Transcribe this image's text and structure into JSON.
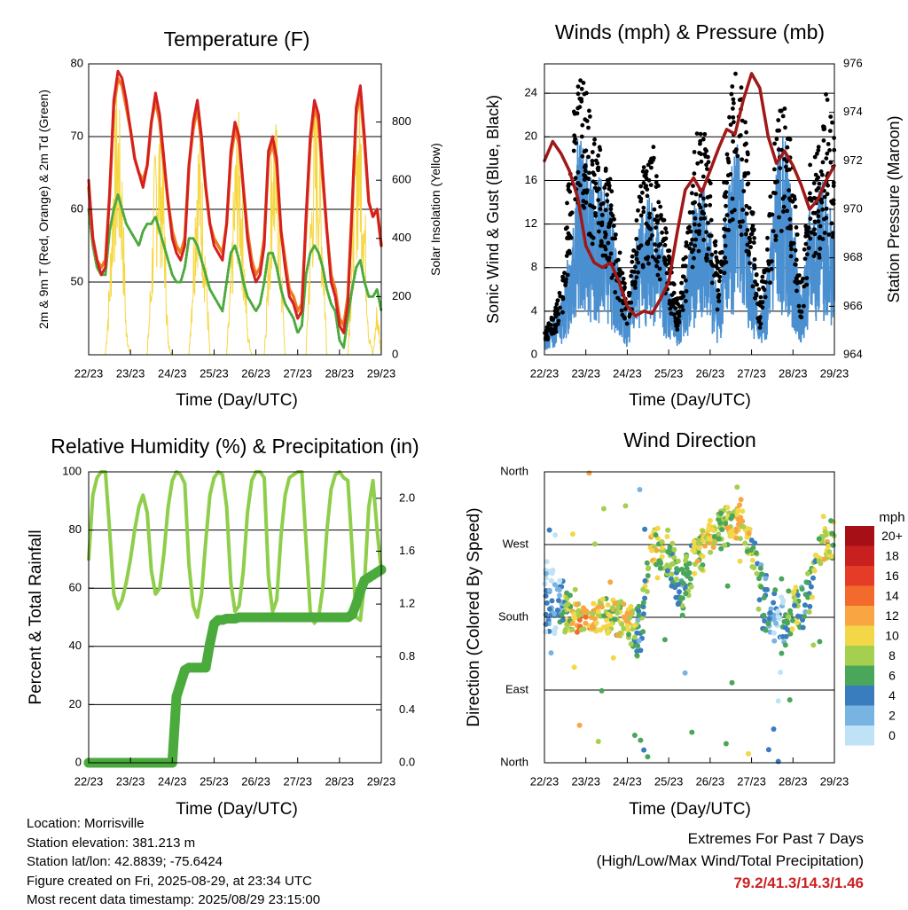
{
  "time_ticks": [
    "22/23",
    "23/23",
    "24/23",
    "25/23",
    "26/23",
    "27/23",
    "28/23",
    "29/23"
  ],
  "time_label": "Time (Day/UTC)",
  "panels": {
    "temperature": {
      "title": "Temperature (F)",
      "ylabel": "2m & 9m T (Red, Orange) & 2m Td (Green)",
      "ylabel_right": "Solar Insolation (Yellow)",
      "yticks": [
        "50",
        "60",
        "70",
        "80"
      ],
      "yticks_right": [
        "0",
        "200",
        "400",
        "600",
        "800"
      ]
    },
    "winds": {
      "title": "Winds (mph) & Pressure (mb)",
      "ylabel": "Sonic Wind & Gust (Blue, Black)",
      "ylabel_right": "Station Pressure (Maroon)",
      "yticks": [
        "0",
        "4",
        "8",
        "12",
        "16",
        "20",
        "24"
      ],
      "yticks_right": [
        "964",
        "966",
        "968",
        "970",
        "972",
        "974",
        "976"
      ]
    },
    "humidity": {
      "title": "Relative Humidity (%) & Precipitation (in)",
      "ylabel": "Percent & Total Rainfall",
      "yticks": [
        "0",
        "20",
        "40",
        "60",
        "80",
        "100"
      ],
      "yticks_right": [
        "0.0",
        "0.4",
        "0.8",
        "1.2",
        "1.6",
        "2.0"
      ]
    },
    "direction": {
      "title": "Wind Direction",
      "ylabel": "Direction (Colored By Speed)",
      "yticks": [
        "North",
        "East",
        "South",
        "West",
        "North"
      ],
      "colorbar_title": "mph",
      "colorbar_labels": [
        "20+",
        "18",
        "16",
        "14",
        "12",
        "10",
        "8",
        "6",
        "4",
        "2",
        "0"
      ],
      "colorbar_colors": [
        "#a50f15",
        "#c8201e",
        "#e43c27",
        "#f26b2c",
        "#f9a642",
        "#f2d849",
        "#a5cf4f",
        "#4aa65a",
        "#3a7dbf",
        "#78b4e2",
        "#bfe2f6"
      ]
    }
  },
  "info": {
    "location": "Location: Morrisville",
    "elevation": "Station elevation: 381.213 m",
    "latlon": "Station lat/lon: 42.8839; -75.6424",
    "created": "Figure created on Fri, 2025-08-29, at 23:34 UTC",
    "recent": "Most recent data timestamp: 2025/08/29 23:15:00"
  },
  "extremes": {
    "heading": "Extremes For Past 7 Days",
    "subheading": "(High/Low/Max Wind/Total Precipitation)",
    "values": "79.2/41.3/14.3/1.46"
  },
  "colors": {
    "temp_2m": "#d42020",
    "temp_9m": "#f07a20",
    "dewpoint": "#4aaa3c",
    "solar": "#f5d742",
    "wind": "#4a90d0",
    "gust": "#000000",
    "pressure": "#a01818",
    "rh": "#8fce4a",
    "precip": "#4aaa3c"
  },
  "chart_data": [
    {
      "type": "line",
      "title": "Temperature (F)",
      "xlabel": "Time (Day/UTC)",
      "ylabel": "2m & 9m T (Red, Orange) & 2m Td (Green)",
      "y2label": "Solar Insolation (Yellow)",
      "x_days": [
        0,
        0.1,
        0.2,
        0.3,
        0.4,
        0.5,
        0.6,
        0.7,
        0.8,
        0.9,
        1,
        1.1,
        1.2,
        1.3,
        1.4,
        1.5,
        1.6,
        1.7,
        1.8,
        1.9,
        2,
        2.1,
        2.2,
        2.3,
        2.4,
        2.5,
        2.6,
        2.7,
        2.8,
        2.9,
        3,
        3.1,
        3.2,
        3.3,
        3.4,
        3.5,
        3.6,
        3.7,
        3.8,
        3.9,
        4,
        4.1,
        4.2,
        4.3,
        4.4,
        4.5,
        4.6,
        4.7,
        4.8,
        4.9,
        5,
        5.1,
        5.2,
        5.3,
        5.4,
        5.5,
        5.6,
        5.7,
        5.8,
        5.9,
        6,
        6.1,
        6.2,
        6.3,
        6.4,
        6.5,
        6.6,
        6.7,
        6.8,
        6.9,
        7
      ],
      "x_ticks": [
        "22/23",
        "23/23",
        "24/23",
        "25/23",
        "26/23",
        "27/23",
        "28/23",
        "29/23"
      ],
      "ylim": [
        40,
        80
      ],
      "y2lim": [
        0,
        1000
      ],
      "series": [
        {
          "name": "2m T",
          "values": [
            64,
            56,
            53,
            51,
            52,
            62,
            75,
            79,
            78,
            75,
            71,
            67,
            65,
            63,
            66,
            72,
            76,
            73,
            67,
            61,
            56,
            54,
            53,
            55,
            66,
            72,
            75,
            70,
            63,
            58,
            55,
            54,
            53,
            58,
            68,
            72,
            70,
            63,
            56,
            52,
            50,
            51,
            55,
            68,
            70,
            67,
            57,
            52,
            48,
            47,
            45,
            46,
            59,
            70,
            75,
            73,
            65,
            57,
            50,
            48,
            44,
            43,
            47,
            60,
            74,
            77,
            70,
            61,
            59,
            60,
            55
          ]
        },
        {
          "name": "9m T",
          "values": [
            63,
            56,
            53,
            52,
            53,
            62,
            74,
            78,
            77,
            74,
            71,
            67,
            65,
            64,
            66,
            72,
            75,
            72,
            66,
            61,
            57,
            55,
            54,
            56,
            66,
            71,
            74,
            69,
            63,
            58,
            56,
            55,
            54,
            58,
            67,
            71,
            69,
            63,
            57,
            53,
            51,
            52,
            56,
            67,
            69,
            66,
            57,
            53,
            49,
            48,
            46,
            47,
            58,
            69,
            74,
            72,
            64,
            57,
            51,
            49,
            45,
            44,
            48,
            60,
            73,
            76,
            69,
            61,
            59,
            60,
            55
          ]
        },
        {
          "name": "2m Td",
          "values": [
            60,
            55,
            52,
            51,
            51,
            57,
            60,
            62,
            60,
            58,
            57,
            56,
            55,
            57,
            58,
            58,
            59,
            57,
            55,
            53,
            51,
            50,
            50,
            52,
            56,
            56,
            55,
            53,
            51,
            49,
            48,
            47,
            46,
            50,
            54,
            55,
            53,
            50,
            48,
            47,
            46,
            47,
            50,
            54,
            54,
            52,
            49,
            47,
            46,
            45,
            43,
            44,
            51,
            54,
            55,
            54,
            52,
            49,
            47,
            46,
            42,
            41,
            45,
            49,
            52,
            53,
            50,
            48,
            48,
            49,
            46
          ]
        },
        {
          "name": "Solar Insolation",
          "values": [
            0,
            0,
            0,
            0,
            0,
            300,
            800,
            950,
            700,
            100,
            0,
            0,
            0,
            0,
            0,
            350,
            800,
            880,
            650,
            50,
            0,
            0,
            0,
            0,
            0,
            400,
            850,
            700,
            400,
            0,
            0,
            0,
            0,
            0,
            300,
            750,
            850,
            500,
            100,
            0,
            0,
            0,
            0,
            400,
            900,
            800,
            400,
            0,
            0,
            0,
            0,
            0,
            0,
            500,
            900,
            850,
            500,
            0,
            0,
            0,
            0,
            0,
            0,
            450,
            900,
            950,
            600,
            100,
            0,
            200,
            0
          ]
        }
      ]
    },
    {
      "type": "line",
      "title": "Winds (mph) & Pressure (mb)",
      "xlabel": "Time (Day/UTC)",
      "ylabel": "Sonic Wind & Gust (Blue, Black)",
      "y2label": "Station Pressure (Maroon)",
      "x_days": [
        0,
        0.2,
        0.4,
        0.6,
        0.8,
        1,
        1.2,
        1.4,
        1.6,
        1.8,
        2,
        2.2,
        2.4,
        2.6,
        2.8,
        3,
        3.2,
        3.4,
        3.6,
        3.8,
        4,
        4.2,
        4.4,
        4.6,
        4.8,
        5,
        5.2,
        5.4,
        5.6,
        5.8,
        6,
        6.2,
        6.4,
        6.6,
        6.8,
        7
      ],
      "ylim": [
        0,
        26.7
      ],
      "y2lim": [
        964,
        976
      ],
      "series": [
        {
          "name": "Sonic Wind",
          "values": [
            1,
            2,
            3,
            6,
            12,
            11,
            9,
            10,
            8,
            5,
            2,
            6,
            8,
            9,
            7,
            4,
            2,
            4,
            8,
            10,
            7,
            3,
            9,
            12,
            10,
            6,
            2,
            5,
            11,
            12,
            8,
            3,
            8,
            9,
            10,
            7
          ]
        },
        {
          "name": "Gust",
          "values": [
            2,
            3,
            5,
            14,
            22,
            20,
            16,
            15,
            13,
            8,
            4,
            10,
            14,
            16,
            12,
            8,
            4,
            8,
            15,
            18,
            14,
            6,
            16,
            22,
            19,
            12,
            4,
            10,
            19,
            20,
            14,
            5,
            14,
            15,
            20,
            16
          ]
        },
        {
          "name": "Station Pressure",
          "values": [
            972,
            972.8,
            972.3,
            971.6,
            970.5,
            968.5,
            967.8,
            967.6,
            967.8,
            967,
            966,
            965.6,
            965.8,
            965.7,
            966.3,
            967,
            969,
            970.8,
            971.3,
            970.7,
            971.6,
            972.5,
            973.3,
            973.1,
            974.5,
            975.6,
            975,
            973,
            971.9,
            972.4,
            971.8,
            971,
            970,
            970.4,
            971.2,
            971.8
          ]
        }
      ]
    },
    {
      "type": "line",
      "title": "Relative Humidity (%) & Precipitation (in)",
      "xlabel": "Time (Day/UTC)",
      "ylabel": "Percent & Total Rainfall",
      "ylim": [
        0,
        100
      ],
      "y2lim": [
        0,
        2.2
      ],
      "x_days": [
        0,
        0.1,
        0.2,
        0.3,
        0.4,
        0.5,
        0.6,
        0.7,
        0.8,
        0.9,
        1,
        1.1,
        1.2,
        1.3,
        1.4,
        1.5,
        1.6,
        1.7,
        1.8,
        1.9,
        2,
        2.1,
        2.2,
        2.3,
        2.4,
        2.5,
        2.6,
        2.7,
        2.8,
        2.9,
        3,
        3.1,
        3.2,
        3.3,
        3.4,
        3.5,
        3.6,
        3.7,
        3.8,
        3.9,
        4,
        4.1,
        4.2,
        4.3,
        4.4,
        4.5,
        4.6,
        4.7,
        4.8,
        4.9,
        5,
        5.1,
        5.2,
        5.3,
        5.4,
        5.5,
        5.6,
        5.7,
        5.8,
        5.9,
        6,
        6.1,
        6.2,
        6.3,
        6.4,
        6.5,
        6.6,
        6.7,
        6.8,
        6.9,
        7
      ],
      "series": [
        {
          "name": "Relative Humidity",
          "values": [
            70,
            92,
            98,
            100,
            100,
            80,
            58,
            53,
            56,
            62,
            70,
            80,
            88,
            92,
            86,
            66,
            58,
            60,
            72,
            88,
            97,
            100,
            99,
            96,
            68,
            54,
            50,
            58,
            76,
            92,
            98,
            100,
            99,
            88,
            62,
            52,
            54,
            66,
            86,
            97,
            100,
            100,
            98,
            64,
            52,
            56,
            78,
            92,
            98,
            99,
            100,
            100,
            76,
            52,
            48,
            50,
            60,
            80,
            94,
            99,
            100,
            98,
            97,
            74,
            50,
            49,
            62,
            88,
            97,
            80,
            66
          ]
        },
        {
          "name": "Total Precipitation",
          "values": [
            0,
            0,
            0,
            0,
            0,
            0,
            0,
            0,
            0,
            0,
            0,
            0,
            0,
            0,
            0,
            0,
            0,
            0,
            0,
            0,
            0,
            0.5,
            0.6,
            0.7,
            0.72,
            0.72,
            0.72,
            0.72,
            0.72,
            0.9,
            1.05,
            1.08,
            1.08,
            1.09,
            1.09,
            1.09,
            1.1,
            1.1,
            1.1,
            1.1,
            1.1,
            1.1,
            1.1,
            1.1,
            1.1,
            1.1,
            1.1,
            1.1,
            1.1,
            1.1,
            1.1,
            1.1,
            1.1,
            1.1,
            1.1,
            1.1,
            1.1,
            1.1,
            1.1,
            1.1,
            1.1,
            1.1,
            1.1,
            1.12,
            1.2,
            1.3,
            1.38,
            1.4,
            1.42,
            1.44,
            1.46
          ]
        }
      ]
    },
    {
      "type": "scatter",
      "title": "Wind Direction",
      "xlabel": "Time (Day/UTC)",
      "ylabel": "Direction (Colored By Speed)",
      "y_categories": [
        "North",
        "East",
        "South",
        "West",
        "North"
      ],
      "ylim": [
        0,
        360
      ],
      "colorbar_label": "mph",
      "colorbar_ticks": [
        0,
        2,
        4,
        6,
        8,
        10,
        12,
        14,
        16,
        18,
        20
      ],
      "x_days": [
        0.3,
        0.7,
        1.0,
        1.5,
        2.0,
        2.3,
        2.6,
        3.0,
        3.3,
        3.6,
        4.0,
        4.3,
        4.7,
        5.0,
        5.3,
        5.7,
        6.0,
        6.3,
        6.7,
        7.0
      ],
      "y_degrees": [
        200,
        180,
        180,
        185,
        175,
        160,
        270,
        260,
        210,
        250,
        280,
        290,
        300,
        270,
        200,
        170,
        190,
        200,
        270,
        280
      ],
      "speed": [
        2,
        10,
        12,
        8,
        10,
        4,
        10,
        6,
        4,
        8,
        10,
        8,
        10,
        8,
        4,
        2,
        8,
        4,
        10,
        8
      ]
    }
  ]
}
